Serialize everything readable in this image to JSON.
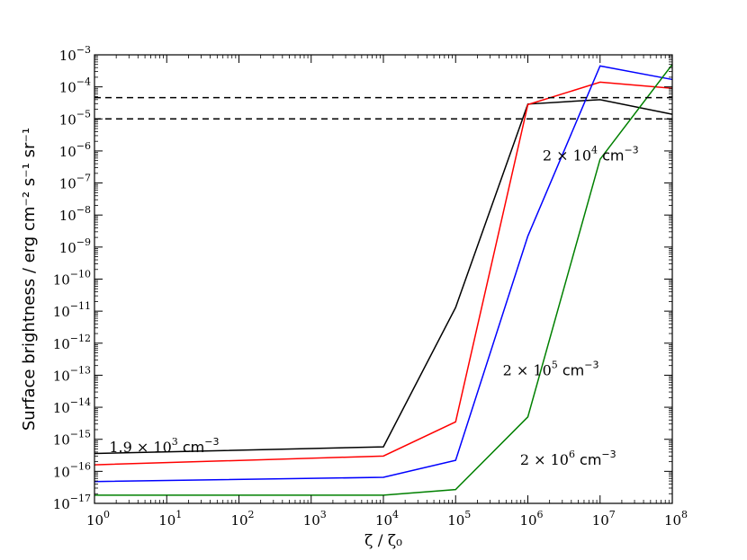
{
  "chart_data": {
    "type": "line",
    "x_scale": "log",
    "y_scale": "log",
    "xlim_exp": [
      0,
      8
    ],
    "ylim_exp": [
      -17,
      -3
    ],
    "x_ticks": [
      {
        "base": "10",
        "exp": "0"
      },
      {
        "base": "10",
        "exp": "1"
      },
      {
        "base": "10",
        "exp": "2"
      },
      {
        "base": "10",
        "exp": "3"
      },
      {
        "base": "10",
        "exp": "4"
      },
      {
        "base": "10",
        "exp": "5"
      },
      {
        "base": "10",
        "exp": "6"
      },
      {
        "base": "10",
        "exp": "7"
      },
      {
        "base": "10",
        "exp": "8"
      }
    ],
    "y_ticks": [
      {
        "base": "10",
        "exp": "−17"
      },
      {
        "base": "10",
        "exp": "−16"
      },
      {
        "base": "10",
        "exp": "−15"
      },
      {
        "base": "10",
        "exp": "−14"
      },
      {
        "base": "10",
        "exp": "−13"
      },
      {
        "base": "10",
        "exp": "−12"
      },
      {
        "base": "10",
        "exp": "−11"
      },
      {
        "base": "10",
        "exp": "−10"
      },
      {
        "base": "10",
        "exp": "−9"
      },
      {
        "base": "10",
        "exp": "−8"
      },
      {
        "base": "10",
        "exp": "−7"
      },
      {
        "base": "10",
        "exp": "−6"
      },
      {
        "base": "10",
        "exp": "−5"
      },
      {
        "base": "10",
        "exp": "−4"
      },
      {
        "base": "10",
        "exp": "−3"
      }
    ],
    "xlabel": "ζ / ζ₀",
    "ylabel": "Surface brightness / erg cm⁻² s⁻¹ sr⁻¹",
    "x": [
      1,
      10000,
      100000,
      1000000,
      10000000,
      100000000
    ],
    "series": [
      {
        "color": "#000000",
        "values": [
          3.6e-16,
          5.8e-16,
          1.3e-11,
          2.9e-05,
          4e-05,
          1.4e-05
        ]
      },
      {
        "color": "#ff0000",
        "values": [
          1.6e-16,
          3e-16,
          3.5e-15,
          2.8e-05,
          0.00014,
          9e-05
        ]
      },
      {
        "color": "#0000ff",
        "values": [
          4.8e-17,
          6.5e-17,
          2.2e-16,
          2.2e-09,
          0.00045,
          0.00017
        ]
      },
      {
        "color": "#008000",
        "values": [
          1.8e-17,
          1.8e-17,
          2.7e-17,
          5e-15,
          5.5e-07,
          0.0005
        ]
      }
    ],
    "hlines": [
      {
        "value": 4.6e-05,
        "style": "dashed",
        "color": "#000000"
      },
      {
        "value": 1e-05,
        "style": "dashed",
        "color": "#000000"
      }
    ],
    "annotations": [
      {
        "id": "black",
        "prefix": "1.9 × 10",
        "sup": "3",
        "unit": " cm",
        "unit_sup": "−3",
        "x": 1.6,
        "y": 4e-16
      },
      {
        "id": "red",
        "prefix": "2 × 10",
        "sup": "4",
        "unit": " cm",
        "unit_sup": "−3",
        "x": 1600000.0,
        "y": 5e-07
      },
      {
        "id": "blue",
        "prefix": "2 × 10",
        "sup": "5",
        "unit": " cm",
        "unit_sup": "−3",
        "x": 450000.0,
        "y": 1e-13
      },
      {
        "id": "green",
        "prefix": "2 × 10",
        "sup": "6",
        "unit": " cm",
        "unit_sup": "−3",
        "x": 780000.0,
        "y": 1.6e-16
      }
    ],
    "grid": false,
    "legend": "none"
  }
}
